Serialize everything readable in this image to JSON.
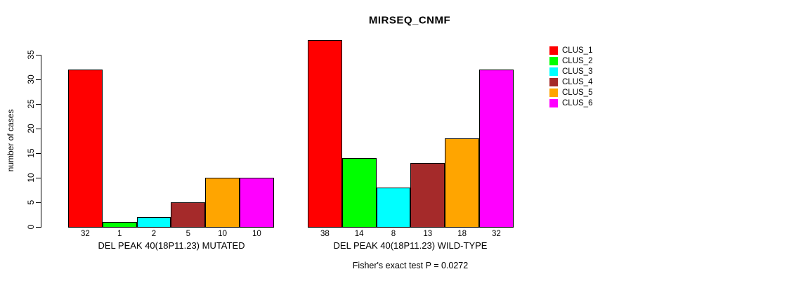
{
  "title": "MIRSEQ_CNMF",
  "ylabel": "number of cases",
  "footer": "Fisher's exact test P = 0.0272",
  "y_axis": {
    "ticks": [
      0,
      5,
      10,
      15,
      20,
      25,
      30,
      35
    ]
  },
  "legend": {
    "items": [
      {
        "label": "CLUS_1",
        "color": "#FF0000"
      },
      {
        "label": "CLUS_2",
        "color": "#00FF00"
      },
      {
        "label": "CLUS_3",
        "color": "#00FFFF"
      },
      {
        "label": "CLUS_4",
        "color": "#A52A2A"
      },
      {
        "label": "CLUS_5",
        "color": "#FFA500"
      },
      {
        "label": "CLUS_6",
        "color": "#FF00FF"
      }
    ]
  },
  "chart_data": [
    {
      "type": "bar",
      "name": "mutated",
      "xlabel": "DEL PEAK 40(18P11.23) MUTATED",
      "categories": [
        "32",
        "1",
        "2",
        "5",
        "10",
        "10"
      ],
      "values": [
        32,
        1,
        2,
        5,
        10,
        10
      ],
      "series_labels": [
        "CLUS_1",
        "CLUS_2",
        "CLUS_3",
        "CLUS_4",
        "CLUS_5",
        "CLUS_6"
      ],
      "colors": [
        "#FF0000",
        "#00FF00",
        "#00FFFF",
        "#A52A2A",
        "#FFA500",
        "#FF00FF"
      ],
      "ylim": [
        0,
        35
      ],
      "grid": false
    },
    {
      "type": "bar",
      "name": "wild-type",
      "xlabel": "DEL PEAK 40(18P11.23) WILD-TYPE",
      "categories": [
        "38",
        "14",
        "8",
        "13",
        "18",
        "32"
      ],
      "values": [
        38,
        14,
        8,
        13,
        18,
        32
      ],
      "series_labels": [
        "CLUS_1",
        "CLUS_2",
        "CLUS_3",
        "CLUS_4",
        "CLUS_5",
        "CLUS_6"
      ],
      "colors": [
        "#FF0000",
        "#00FF00",
        "#00FFFF",
        "#A52A2A",
        "#FFA500",
        "#FF00FF"
      ],
      "ylim": [
        0,
        35
      ],
      "grid": false
    }
  ]
}
